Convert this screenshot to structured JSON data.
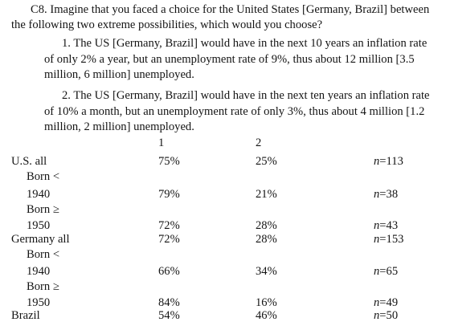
{
  "question": {
    "text": "C8. Imagine that you faced a choice for the United States [Germany, Brazil] between the following two extreme possibilities, which would you choose?"
  },
  "options": [
    {
      "text": "1. The US [Germany, Brazil] would have in the next 10 years an inflation rate of only 2% a year, but an unemployment rate of 9%, thus about 12 million [3.5 million, 6 million] unemployed."
    },
    {
      "text": "2. The US [Germany, Brazil] would have in the next ten years an inflation rate of 10% a month, but an unemployment rate of only 3%, thus about 4 million [1.2 million, 2 million] unemployed."
    }
  ],
  "table": {
    "col1_header": "1",
    "col2_header": "2",
    "rows": [
      {
        "label": "U.S. all",
        "c1": "75%",
        "c2": "25%",
        "n": "113"
      },
      {
        "label": "Born <",
        "c1": "",
        "c2": "",
        "n": ""
      },
      {
        "label": "1940",
        "c1": "79%",
        "c2": "21%",
        "n": "38"
      },
      {
        "label": "Born ≥",
        "c1": "",
        "c2": "",
        "n": ""
      },
      {
        "label": "1950",
        "c1": "72%",
        "c2": "28%",
        "n": "43"
      },
      {
        "label": "Germany all",
        "c1": "72%",
        "c2": "28%",
        "n": "153"
      },
      {
        "label": "Born <",
        "c1": "",
        "c2": "",
        "n": ""
      },
      {
        "label": "1940",
        "c1": "66%",
        "c2": "34%",
        "n": "65"
      },
      {
        "label": "Born ≥",
        "c1": "",
        "c2": "",
        "n": ""
      },
      {
        "label": "1950",
        "c1": "84%",
        "c2": "16%",
        "n": "49"
      },
      {
        "label": "Brazil",
        "c1": "54%",
        "c2": "46%",
        "n": "50"
      }
    ]
  }
}
